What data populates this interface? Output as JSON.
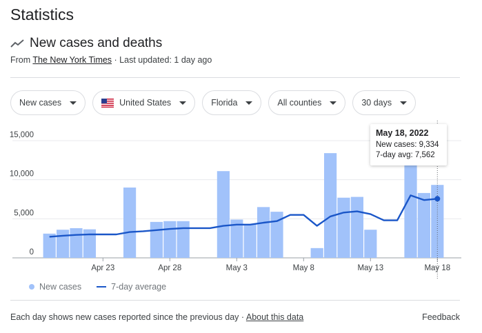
{
  "page": {
    "title": "Statistics"
  },
  "card": {
    "title": "New cases and deaths",
    "source_prefix": "From",
    "source_link": "The New York Times",
    "last_updated": " · Last updated: 1 day ago"
  },
  "filters": [
    {
      "label": "New cases",
      "icon": "caret-down-icon"
    },
    {
      "label": "United States",
      "icon": "us-flag-icon"
    },
    {
      "label": "Florida",
      "icon": "caret-down-icon"
    },
    {
      "label": "All counties",
      "icon": "caret-down-icon"
    },
    {
      "label": "30 days",
      "icon": "caret-down-icon"
    }
  ],
  "tooltip": {
    "date": "May 18, 2022",
    "new_cases": "New cases: 9,334",
    "avg": "7-day avg: 7,562"
  },
  "legend": {
    "bars": "New cases",
    "line": "7-day average"
  },
  "footer": {
    "note": "Each day shows new cases reported since the previous day",
    "sep": " · ",
    "link": "About this data",
    "feedback": "Feedback"
  },
  "colors": {
    "bar": "#a1c2fa",
    "line": "#1a56c8",
    "grid": "#e8eaed"
  },
  "chart_data": {
    "type": "bar",
    "ylim": [
      0,
      15000
    ],
    "yticks": [
      "0",
      "5,000",
      "10,000",
      "15,000"
    ],
    "ytick_values": [
      0,
      5000,
      10000,
      15000
    ],
    "xtick_labels": [
      "Apr 23",
      "Apr 28",
      "May 3",
      "May 8",
      "May 13",
      "May 18"
    ],
    "xtick_days": [
      23,
      28,
      33,
      38,
      43,
      48
    ],
    "days": [
      19,
      20,
      21,
      22,
      23,
      24,
      25,
      26,
      27,
      28,
      29,
      30,
      31,
      32,
      33,
      34,
      35,
      36,
      37,
      38,
      39,
      40,
      41,
      42,
      43,
      44,
      45,
      46,
      47,
      48
    ],
    "series": [
      {
        "name": "New cases",
        "type": "bar",
        "values": [
          3100,
          3600,
          3800,
          3650,
          0,
          0,
          9000,
          0,
          4600,
          4700,
          4700,
          0,
          0,
          11100,
          4900,
          4300,
          6500,
          5900,
          0,
          0,
          1250,
          13400,
          7700,
          7800,
          3600,
          0,
          0,
          12000,
          8300,
          9334
        ]
      },
      {
        "name": "7-day average",
        "type": "line",
        "values": [
          2700,
          2830,
          2940,
          3000,
          3000,
          3000,
          3300,
          3400,
          3550,
          3700,
          3800,
          3800,
          3800,
          4100,
          4250,
          4250,
          4500,
          4700,
          5500,
          5500,
          4100,
          5300,
          5800,
          5950,
          5600,
          4800,
          4800,
          8000,
          7400,
          7562
        ]
      }
    ]
  }
}
